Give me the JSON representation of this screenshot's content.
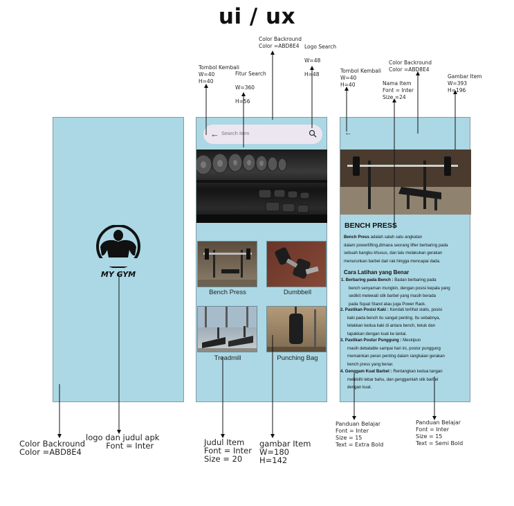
{
  "title": "ui / ux",
  "annotations": {
    "color_bg_1": "Color Backround\nColor =ABD8E4",
    "logo_title": "logo dan judul apk\n        Font = Inter",
    "judul_item": "Judul Item\nFont = Inter\nSize = 20",
    "gambar_item": "gambar Item\nW=180\nH=142",
    "tombol_kembali_2": "Tombol Kembali\nW=40\nH=40",
    "fitur_search": "Fitur Search\n\nW=360\n\nH=56",
    "color_bg_2": "Color Backround\nColor =ABD8E4",
    "logo_search": "Logo Search\n\nW=48\n\nH=48",
    "tombol_kembali_3": "Tombol Kembali\nW=40\nH=40",
    "nama_item": "Nama Item\nFont = Inter\nSize =24",
    "color_bg_3": "Color Backround\nColor =ABD8E4",
    "gambar_item_3": "Gambar Item\nW=393\nH=196",
    "panduan_extra": "Panduan Belajar\nFont = Inter\nSize = 15\nText = Extra Bold",
    "panduan_semi": "Panduan Belajar\nFont = Inter\nSize = 15\nText = Semi Bold"
  },
  "screen1": {
    "logo_text": "MY GYM"
  },
  "screen2": {
    "search_placeholder": "Search Item",
    "items": [
      "Bench Press",
      "Dumbbell",
      "Treadmill",
      "Punching Bag"
    ]
  },
  "screen3": {
    "item_name": "BENCH PRESS",
    "intro_bold": "Bench Press",
    "intro_lines": [
      " adalah salah satu angkatan",
      "dalam powerlifting,dimana seorang lifter berbaring pada",
      "sebuah bangku khusus, dan lalu melakukan gerakan",
      "menurunkan barbel dari rak hingga mencapai dada."
    ],
    "steps_title": "Cara Latihan yang Benar",
    "steps": [
      {
        "num": "1.",
        "head": "Berbaring pada Bench :",
        "lines": [
          " Badan berbaring pada",
          "bench senyaman mungkin, dengan posisi kepala yang",
          "sedikit melewati stik barbel yang masih berada",
          "pada Squat Stand atau juga Power Rack."
        ]
      },
      {
        "num": "2.",
        "head": "Pastikan Posisi Kaki :",
        "lines": [
          " Kendati terlihat statis, posisi",
          "kaki pada bench itu sangat penting. Itu sebabnya,",
          "letakkan kedua kaki di antara bench, tekuk dan",
          "tapakkan dengan kuat ke lantai."
        ]
      },
      {
        "num": "3.",
        "head": "Pastikan Postur Punggung :",
        "lines": [
          " Meskipun",
          "masih debatable sampai hari ini, postur punggung",
          "memainkan peran penting dalam rangkaian gerakan",
          "bench press yang benar."
        ]
      },
      {
        "num": "4.",
        "head": "Genggam Kuat Barbel :",
        "lines": [
          " Rentangkan kedua tangan",
          "melebihi lebar bahu, dan genggamlah stik barbel",
          "dengan kuat."
        ]
      }
    ]
  },
  "colors": {
    "screen_bg": "#ABD8E4",
    "search_bg": "#ECE6F0"
  }
}
